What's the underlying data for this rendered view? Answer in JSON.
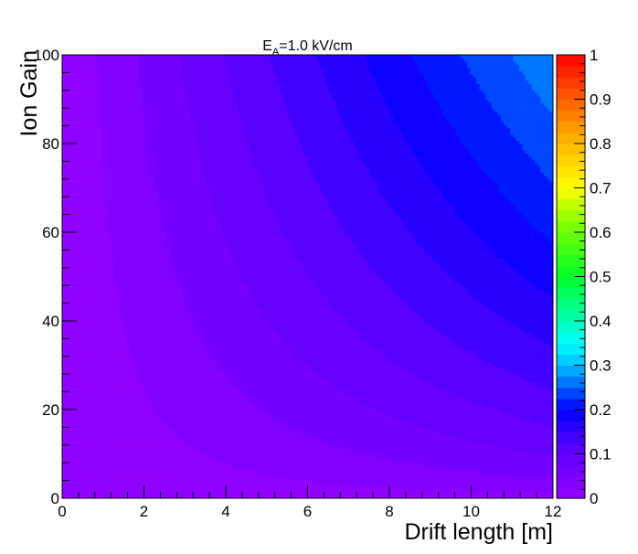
{
  "chart_data": {
    "type": "heatmap",
    "title": {
      "main": "E",
      "subscript": "A",
      "rest": "=1.0 kV/cm"
    },
    "xlabel": "Drift length [m]",
    "ylabel": "Ion Gain",
    "xlim": [
      0,
      12
    ],
    "ylim": [
      0,
      100
    ],
    "x_ticks": [
      0,
      2,
      4,
      6,
      8,
      10,
      12
    ],
    "y_ticks": [
      0,
      20,
      40,
      60,
      80,
      100
    ],
    "z_range": [
      0,
      1
    ],
    "colorbar_ticks": [
      0,
      0.1,
      0.2,
      0.3,
      0.4,
      0.5,
      0.6,
      0.7,
      0.8,
      0.9,
      1
    ],
    "contour_levels": 40,
    "surface_model": "z ≈ 0.0023 · x^0.9 · y^0.55 (read off contour shading; z rises toward upper-right)",
    "corner_values": {
      "x0_y0": 0.0,
      "x12_y100": 0.35,
      "x12_y20": 0.13,
      "x4_y100": 0.1
    },
    "grid": false,
    "colorbar_position": "right"
  }
}
